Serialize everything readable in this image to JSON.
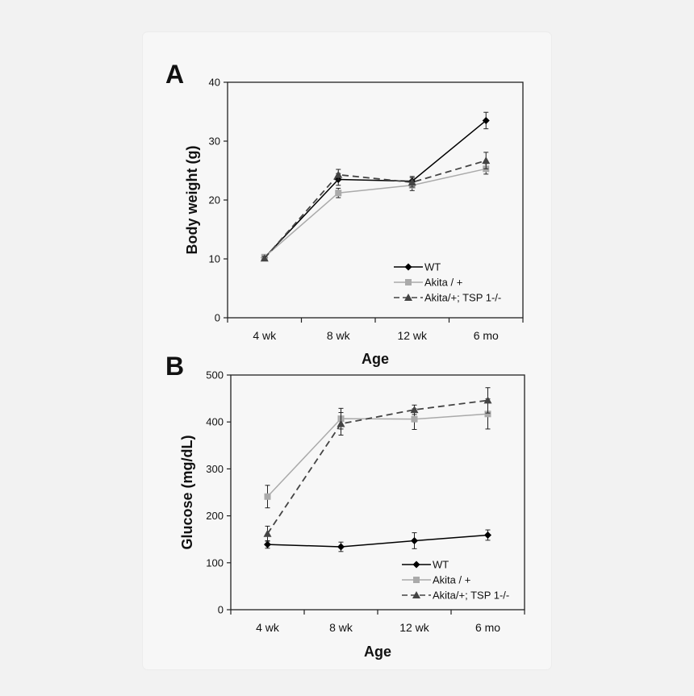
{
  "chart_data": [
    {
      "panel_label": "A",
      "type": "line",
      "xlabel": "Age",
      "ylabel": "Body weight (g)",
      "categories": [
        "4 wk",
        "8 wk",
        "12 wk",
        "6 mo"
      ],
      "ylim": [
        0,
        40
      ],
      "yticks": [
        0,
        10,
        20,
        30,
        40
      ],
      "grid": false,
      "legend_position": "bottom-right",
      "series": [
        {
          "name": "WT",
          "color": "#000000",
          "dash": "solid",
          "marker": "diamond",
          "values": [
            10.2,
            23.5,
            23.2,
            33.5
          ],
          "errors": [
            0.4,
            1.0,
            0.8,
            1.4
          ]
        },
        {
          "name": "Akita / +",
          "color": "#aaaaaa",
          "dash": "solid",
          "marker": "square",
          "values": [
            10.3,
            21.2,
            22.5,
            25.3
          ],
          "errors": [
            0.4,
            0.8,
            0.9,
            0.9
          ]
        },
        {
          "name": "Akita/+; TSP 1-/-",
          "color": "#444444",
          "dash": "dashed",
          "marker": "triangle",
          "values": [
            10.1,
            24.3,
            23.0,
            26.7
          ],
          "errors": [
            0.3,
            0.9,
            0.8,
            1.4
          ]
        }
      ]
    },
    {
      "panel_label": "B",
      "type": "line",
      "xlabel": "Age",
      "ylabel": "Glucose (mg/dL)",
      "categories": [
        "4 wk",
        "8 wk",
        "12 wk",
        "6 mo"
      ],
      "ylim": [
        0,
        500
      ],
      "yticks": [
        0,
        100,
        200,
        300,
        400,
        500
      ],
      "grid": false,
      "legend_position": "bottom-right",
      "series": [
        {
          "name": "WT",
          "color": "#000000",
          "dash": "solid",
          "marker": "diamond",
          "values": [
            139,
            134,
            147,
            159
          ],
          "errors": [
            8,
            10,
            17,
            11
          ]
        },
        {
          "name": "Akita / +",
          "color": "#aaaaaa",
          "dash": "solid",
          "marker": "square",
          "values": [
            241,
            407,
            406,
            417
          ],
          "errors": [
            24,
            22,
            22,
            32
          ]
        },
        {
          "name": "Akita/+; TSP 1-/-",
          "color": "#444444",
          "dash": "dashed",
          "marker": "triangle",
          "values": [
            162,
            396,
            426,
            446
          ],
          "errors": [
            16,
            24,
            10,
            27
          ]
        }
      ]
    }
  ]
}
